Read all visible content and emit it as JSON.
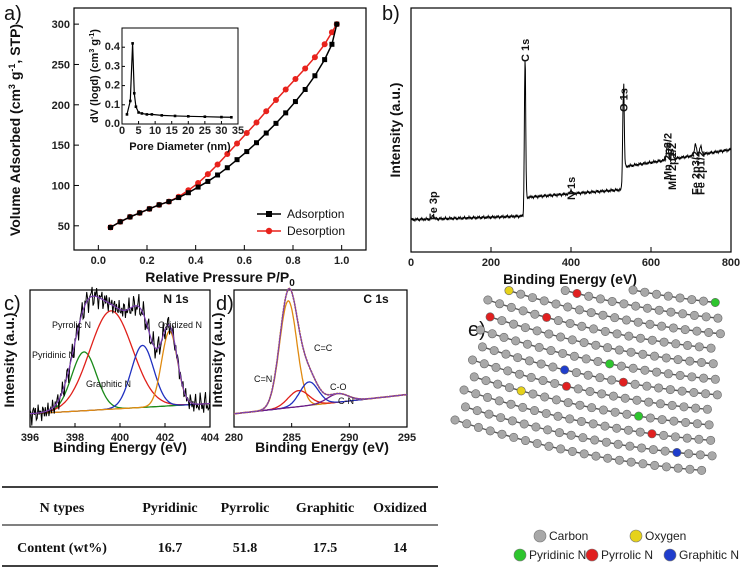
{
  "chart_data": [
    {
      "panel": "a)",
      "type": "line",
      "xlabel": "Relative Pressure P/P0",
      "ylabel": "Volume Adsorbed (cm3 g-1, STP)",
      "xlim": [
        -0.1,
        1.1
      ],
      "ylim": [
        20,
        320
      ],
      "xticks": [
        "0.0",
        "0.2",
        "0.4",
        "0.6",
        "0.8",
        "1.0"
      ],
      "yticks": [
        "50",
        "100",
        "150",
        "200",
        "250",
        "300"
      ],
      "legend_position": "bottom-right",
      "series": [
        {
          "name": "Adsorption",
          "color": "#000000",
          "x": [
            0.05,
            0.09,
            0.13,
            0.17,
            0.21,
            0.25,
            0.29,
            0.33,
            0.37,
            0.41,
            0.45,
            0.49,
            0.53,
            0.57,
            0.61,
            0.65,
            0.69,
            0.73,
            0.77,
            0.81,
            0.85,
            0.89,
            0.93,
            0.96,
            0.98
          ],
          "y": [
            48,
            55,
            61,
            66,
            71,
            76,
            80,
            85,
            91,
            98,
            105,
            113,
            122,
            132,
            142,
            153,
            165,
            177,
            190,
            204,
            219,
            236,
            256,
            275,
            300
          ]
        },
        {
          "name": "Desorption",
          "color": "#e8221c",
          "x": [
            0.05,
            0.09,
            0.13,
            0.17,
            0.21,
            0.25,
            0.29,
            0.33,
            0.37,
            0.41,
            0.45,
            0.49,
            0.53,
            0.57,
            0.61,
            0.65,
            0.69,
            0.73,
            0.77,
            0.81,
            0.85,
            0.89,
            0.93,
            0.96,
            0.98
          ],
          "y": [
            48,
            55,
            61,
            66,
            71,
            76,
            80,
            86,
            94,
            103,
            114,
            126,
            139,
            152,
            165,
            178,
            192,
            206,
            219,
            232,
            245,
            259,
            275,
            290,
            300
          ]
        }
      ],
      "inset": {
        "type": "line",
        "xlabel": "Pore Diameter (nm)",
        "ylabel": "dV (logd) (cm3 g-1)",
        "xlim": [
          0,
          35
        ],
        "ylim": [
          0,
          0.5
        ],
        "xticks": [
          "0",
          "5",
          "10",
          "15",
          "20",
          "25",
          "30",
          "35"
        ],
        "yticks": [
          "0.0",
          "0.1",
          "0.2",
          "0.3",
          "0.4"
        ],
        "x": [
          1.5,
          2.5,
          3.2,
          3.7,
          4.2,
          5,
          6,
          7.5,
          9,
          12,
          16,
          20,
          25,
          30,
          33
        ],
        "y": [
          0.05,
          0.12,
          0.42,
          0.16,
          0.09,
          0.06,
          0.055,
          0.05,
          0.05,
          0.045,
          0.042,
          0.04,
          0.038,
          0.036,
          0.035
        ]
      }
    },
    {
      "panel": "b)",
      "type": "line",
      "xlabel": "Binding Energy (eV)",
      "ylabel": "Intensity (a.u.)",
      "xlim": [
        0,
        800
      ],
      "xticks": [
        "0",
        "200",
        "400",
        "600",
        "800"
      ],
      "annotations": [
        {
          "text": "Fe 3p",
          "x": 55
        },
        {
          "text": "C 1s",
          "x": 285
        },
        {
          "text": "N 1s",
          "x": 400
        },
        {
          "text": "O 1s",
          "x": 531
        },
        {
          "text": "Mn 2p3/2",
          "x": 641
        },
        {
          "text": "Mn 2p1/2",
          "x": 653
        },
        {
          "text": "Fe 2p3/2",
          "x": 711
        },
        {
          "text": "Fe 2p1/2",
          "x": 724
        }
      ]
    },
    {
      "panel": "c)",
      "type": "line",
      "title": "N 1s",
      "xlabel": "Binding Energy (eV)",
      "ylabel": "Intensity (a.u.)",
      "xlim": [
        396,
        404
      ],
      "xticks": [
        "396",
        "398",
        "400",
        "402",
        "404"
      ],
      "series": [
        {
          "name": "Pyridinic N",
          "color": "#1a8a1a",
          "center": 398.4,
          "height": 0.55,
          "width": 0.55
        },
        {
          "name": "Pyrrolic N",
          "color": "#e0201a",
          "center": 399.6,
          "height": 0.92,
          "width": 0.95
        },
        {
          "name": "Graphitic N",
          "color": "#2030c0",
          "center": 401.0,
          "height": 0.58,
          "width": 0.5
        },
        {
          "name": "Oxidized N",
          "color": "#e08a10",
          "center": 402.2,
          "height": 0.7,
          "width": 0.35
        }
      ]
    },
    {
      "panel": "d)",
      "type": "line",
      "title": "C 1s",
      "xlabel": "Binding Energy (eV)",
      "ylabel": "Intensity (a.u.)",
      "xlim": [
        280,
        295
      ],
      "xticks": [
        "280",
        "285",
        "290",
        "295"
      ],
      "series": [
        {
          "name": "C=C",
          "color": "#e08a10",
          "center": 284.7,
          "height": 1.0,
          "width": 0.75
        },
        {
          "name": "C=N",
          "color": "#e0201a",
          "center": 285.6,
          "height": 0.15,
          "width": 0.9
        },
        {
          "name": "C-O",
          "color": "#2030c0",
          "center": 286.5,
          "height": 0.22,
          "width": 0.8
        },
        {
          "name": "C-N",
          "color": "#6a1a8a",
          "center": 289.0,
          "height": 0.08,
          "width": 0.9
        }
      ]
    },
    {
      "type": "table",
      "columns": [
        "N types",
        "Pyridinic",
        "Pyrrolic",
        "Graphitic",
        "Oxidized"
      ],
      "rows": [
        [
          "Content (wt%)",
          "16.7",
          "51.8",
          "17.5",
          "14"
        ]
      ]
    }
  ],
  "panel_e": {
    "label": "e)",
    "legend": [
      {
        "name": "Carbon",
        "color": "#a8a8a8"
      },
      {
        "name": "Oxygen",
        "color": "#e6d21a"
      },
      {
        "name": "Pyridinic N",
        "color": "#2ec52e"
      },
      {
        "name": "Pyrrolic N",
        "color": "#e02020"
      },
      {
        "name": "Graphitic N",
        "color": "#1f3dcc"
      }
    ]
  }
}
